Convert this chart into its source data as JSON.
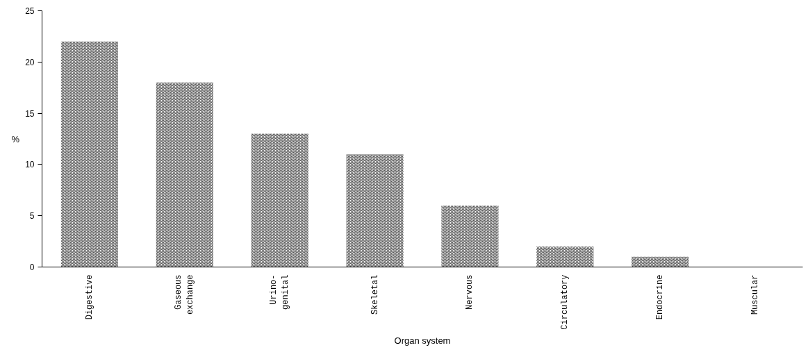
{
  "chart_data": {
    "type": "bar",
    "xlabel": "Organ system",
    "ylabel": "%",
    "categories": [
      "Digestive",
      "Gaseous\nexchange",
      "Urino-\ngenital",
      "Skeletal",
      "Nervous",
      "Circulatory",
      "Endocrine",
      "Muscular"
    ],
    "values": [
      22,
      18,
      13,
      11,
      6,
      2,
      1,
      0
    ],
    "color": "#555555",
    "ylim": [
      0,
      25
    ],
    "yticks": [
      0,
      5,
      10,
      15,
      20,
      25
    ],
    "grid": false
  }
}
